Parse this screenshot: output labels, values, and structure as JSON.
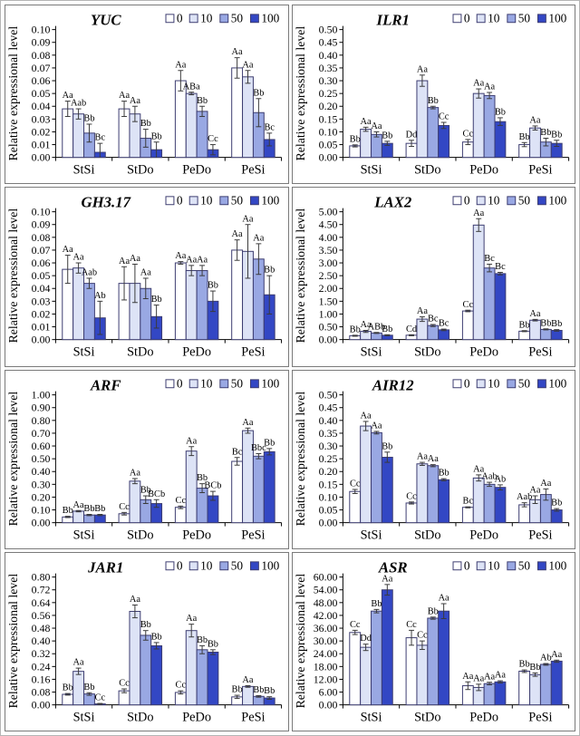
{
  "figure": {
    "ylabel": "Relative expressional level",
    "categories": [
      "StSi",
      "StDo",
      "PeDo",
      "PeSi"
    ],
    "legend": [
      "0",
      "10",
      "50",
      "100"
    ],
    "series_colors": [
      "#FFFFFF",
      "#DDE3F6",
      "#99A8E3",
      "#3347C4"
    ],
    "bar_border_color": "#3C3C70",
    "error_bar_color": "#3A3A3A",
    "axis_color": "#000000",
    "panel_border_color": "#7A7A7A"
  },
  "chart_data": [
    {
      "type": "bar",
      "title": "YUC",
      "ylabel": "Relative expressional level",
      "categories": [
        "StSi",
        "StDo",
        "PeDo",
        "PeSi"
      ],
      "ylim": [
        0,
        0.1
      ],
      "ystep": 0.01,
      "decimals": 2,
      "legend_position": "top-right",
      "grid": false,
      "series": [
        {
          "name": "0",
          "values": [
            0.038,
            0.038,
            0.06,
            0.07
          ],
          "errors": [
            0.006,
            0.006,
            0.008,
            0.008
          ],
          "labels": [
            "Aa",
            "Aa",
            "Aa",
            "Aa"
          ]
        },
        {
          "name": "10",
          "values": [
            0.034,
            0.034,
            0.05,
            0.063
          ],
          "errors": [
            0.004,
            0.006,
            0.001,
            0.005
          ],
          "labels": [
            "Aab",
            "Aa",
            "ABa",
            "Aa"
          ]
        },
        {
          "name": "50",
          "values": [
            0.019,
            0.015,
            0.036,
            0.035
          ],
          "errors": [
            0.007,
            0.007,
            0.004,
            0.011
          ],
          "labels": [
            "Bb",
            "Bb",
            "Bb",
            "Bb"
          ]
        },
        {
          "name": "100",
          "values": [
            0.004,
            0.006,
            0.006,
            0.014
          ],
          "errors": [
            0.007,
            0.006,
            0.004,
            0.005
          ],
          "labels": [
            "Bc",
            "Bb",
            "Cc",
            "Bc"
          ]
        }
      ]
    },
    {
      "type": "bar",
      "title": "ILR1",
      "ylabel": "Relative expressional level",
      "categories": [
        "StSi",
        "StDo",
        "PeDo",
        "PeSi"
      ],
      "ylim": [
        0,
        0.5
      ],
      "ystep": 0.05,
      "decimals": 2,
      "legend_position": "top-right",
      "grid": false,
      "series": [
        {
          "name": "0",
          "values": [
            0.045,
            0.055,
            0.06,
            0.05
          ],
          "errors": [
            0.004,
            0.012,
            0.01,
            0.008
          ],
          "labels": [
            "Bb",
            "Dd",
            "Cc",
            "Bb"
          ]
        },
        {
          "name": "10",
          "values": [
            0.11,
            0.3,
            0.25,
            0.115
          ],
          "errors": [
            0.008,
            0.022,
            0.018,
            0.008
          ],
          "labels": [
            "Aa",
            "Aa",
            "Aa",
            "Aa"
          ]
        },
        {
          "name": "50",
          "values": [
            0.09,
            0.195,
            0.242,
            0.06
          ],
          "errors": [
            0.01,
            0.005,
            0.012,
            0.015
          ],
          "labels": [
            "Aa",
            "Bb",
            "Aa",
            "Bb"
          ]
        },
        {
          "name": "100",
          "values": [
            0.055,
            0.125,
            0.14,
            0.055
          ],
          "errors": [
            0.008,
            0.012,
            0.015,
            0.012
          ],
          "labels": [
            "Bb",
            "Cc",
            "Bb",
            "Bb"
          ]
        }
      ]
    },
    {
      "type": "bar",
      "title": "GH3.17",
      "ylabel": "Relative expressional level",
      "categories": [
        "StSi",
        "StDo",
        "PeDo",
        "PeSi"
      ],
      "ylim": [
        0,
        0.1
      ],
      "ystep": 0.01,
      "decimals": 2,
      "legend_position": "top-right",
      "grid": false,
      "series": [
        {
          "name": "0",
          "values": [
            0.055,
            0.044,
            0.06,
            0.07
          ],
          "errors": [
            0.011,
            0.013,
            0.001,
            0.008
          ],
          "labels": [
            "Aa",
            "Aa",
            "Aa",
            "Aa"
          ]
        },
        {
          "name": "10",
          "values": [
            0.056,
            0.044,
            0.054,
            0.069
          ],
          "errors": [
            0.004,
            0.015,
            0.004,
            0.021
          ],
          "labels": [
            "Aa",
            "Aa",
            "Aa",
            "Aa"
          ]
        },
        {
          "name": "50",
          "values": [
            0.044,
            0.04,
            0.054,
            0.063
          ],
          "errors": [
            0.004,
            0.008,
            0.004,
            0.012
          ],
          "labels": [
            "Aab",
            "Aa",
            "Aa",
            "Aa"
          ]
        },
        {
          "name": "100",
          "values": [
            0.017,
            0.018,
            0.03,
            0.035
          ],
          "errors": [
            0.013,
            0.009,
            0.008,
            0.015
          ],
          "labels": [
            "Ab",
            "Bb",
            "Bb",
            "Bb"
          ]
        }
      ]
    },
    {
      "type": "bar",
      "title": "LAX2",
      "ylabel": "Relative expressional level",
      "categories": [
        "StSi",
        "StDo",
        "PeDo",
        "PeSi"
      ],
      "ylim": [
        0,
        5.0
      ],
      "ystep": 0.5,
      "decimals": 2,
      "legend_position": "top-right",
      "grid": false,
      "series": [
        {
          "name": "0",
          "values": [
            0.15,
            0.17,
            1.12,
            0.33
          ],
          "errors": [
            0.02,
            0.02,
            0.03,
            0.02
          ],
          "labels": [
            "Bb",
            "Cd",
            "Cc",
            "Bb"
          ]
        },
        {
          "name": "10",
          "values": [
            0.32,
            0.8,
            4.48,
            0.76
          ],
          "errors": [
            0.04,
            0.09,
            0.25,
            0.03
          ],
          "labels": [
            "Aa",
            "Aa",
            "Aa",
            "Aa"
          ]
        },
        {
          "name": "50",
          "values": [
            0.26,
            0.55,
            2.8,
            0.4
          ],
          "errors": [
            0.02,
            0.04,
            0.15,
            0.02
          ],
          "labels": [
            "ABb",
            "Bc",
            "Bc",
            "Bb"
          ]
        },
        {
          "name": "100",
          "values": [
            0.17,
            0.38,
            2.58,
            0.36
          ],
          "errors": [
            0.02,
            0.03,
            0.05,
            0.03
          ],
          "labels": [
            "Bb",
            "Bc",
            "Bc",
            "Bb"
          ]
        }
      ]
    },
    {
      "type": "bar",
      "title": "ARF",
      "ylabel": "Relative expressional level",
      "categories": [
        "StSi",
        "StDo",
        "PeDo",
        "PeSi"
      ],
      "ylim": [
        0,
        1.0
      ],
      "ystep": 0.1,
      "decimals": 2,
      "legend_position": "top-right",
      "grid": false,
      "series": [
        {
          "name": "0",
          "values": [
            0.045,
            0.07,
            0.12,
            0.48
          ],
          "errors": [
            0.005,
            0.01,
            0.01,
            0.03
          ],
          "labels": [
            "Bb",
            "Cc",
            "Cc",
            "Bc"
          ]
        },
        {
          "name": "10",
          "values": [
            0.09,
            0.325,
            0.56,
            0.72
          ],
          "errors": [
            0.005,
            0.02,
            0.035,
            0.02
          ],
          "labels": [
            "Aa",
            "Aa",
            "Aa",
            "Aa"
          ]
        },
        {
          "name": "50",
          "values": [
            0.06,
            0.18,
            0.27,
            0.52
          ],
          "errors": [
            0.005,
            0.03,
            0.035,
            0.02
          ],
          "labels": [
            "Bb",
            "Bb",
            "Bb",
            "Bbc"
          ]
        },
        {
          "name": "100",
          "values": [
            0.06,
            0.15,
            0.21,
            0.555
          ],
          "errors": [
            0.005,
            0.03,
            0.035,
            0.025
          ],
          "labels": [
            "Bb",
            "BCb",
            "BCb",
            "Bb"
          ]
        }
      ]
    },
    {
      "type": "bar",
      "title": "AIR12",
      "ylabel": "Relative expressional level",
      "categories": [
        "StSi",
        "StDo",
        "PeDo",
        "PeSi"
      ],
      "ylim": [
        0,
        0.5
      ],
      "ystep": 0.05,
      "decimals": 2,
      "legend_position": "top-right",
      "grid": false,
      "series": [
        {
          "name": "0",
          "values": [
            0.122,
            0.077,
            0.06,
            0.07
          ],
          "errors": [
            0.008,
            0.004,
            0.002,
            0.008
          ],
          "labels": [
            "Cc",
            "Cc",
            "Bc",
            "Aab"
          ]
        },
        {
          "name": "10",
          "values": [
            0.378,
            0.23,
            0.175,
            0.09
          ],
          "errors": [
            0.018,
            0.006,
            0.012,
            0.015
          ],
          "labels": [
            "Aa",
            "Aa",
            "Aa",
            "Aa"
          ]
        },
        {
          "name": "50",
          "values": [
            0.352,
            0.223,
            0.15,
            0.11
          ],
          "errors": [
            0.005,
            0.004,
            0.008,
            0.022
          ],
          "labels": [
            "Aa",
            "Aa",
            "Aab",
            "Aa"
          ]
        },
        {
          "name": "100",
          "values": [
            0.256,
            0.168,
            0.138,
            0.05
          ],
          "errors": [
            0.02,
            0.004,
            0.01,
            0.005
          ],
          "labels": [
            "Bb",
            "Bb",
            "Ab",
            "Bb"
          ]
        }
      ]
    },
    {
      "type": "bar",
      "title": "JAR1",
      "ylabel": "Relative expressional level",
      "categories": [
        "StSi",
        "StDo",
        "PeDo",
        "PeSi"
      ],
      "ylim": [
        0,
        0.8
      ],
      "ystep": 0.08,
      "decimals": 2,
      "legend_position": "top-right",
      "grid": false,
      "series": [
        {
          "name": "0",
          "values": [
            0.066,
            0.088,
            0.078,
            0.05
          ],
          "errors": [
            0.005,
            0.012,
            0.01,
            0.01
          ],
          "labels": [
            "Bb",
            "Cc",
            "Cc",
            "Bb"
          ]
        },
        {
          "name": "10",
          "values": [
            0.21,
            0.585,
            0.465,
            0.115
          ],
          "errors": [
            0.02,
            0.04,
            0.04,
            0.005
          ],
          "labels": [
            "Aa",
            "Aa",
            "Aa",
            "Aa"
          ]
        },
        {
          "name": "50",
          "values": [
            0.068,
            0.435,
            0.345,
            0.053
          ],
          "errors": [
            0.008,
            0.03,
            0.025,
            0.005
          ],
          "labels": [
            "Bb",
            "Bb",
            "Bb",
            "Bb"
          ]
        },
        {
          "name": "100",
          "values": [
            0.006,
            0.37,
            0.33,
            0.043
          ],
          "errors": [
            0.003,
            0.02,
            0.015,
            0.008
          ],
          "labels": [
            "Cc",
            "Bb",
            "Bb",
            "Bb"
          ]
        }
      ]
    },
    {
      "type": "bar",
      "title": "ASR",
      "ylabel": "Relative expressional level",
      "categories": [
        "StSi",
        "StDo",
        "PeDo",
        "PeSi"
      ],
      "ylim": [
        0,
        60.0
      ],
      "ystep": 6.0,
      "decimals": 2,
      "legend_position": "top-right",
      "grid": false,
      "series": [
        {
          "name": "0",
          "values": [
            34.0,
            31.5,
            9.0,
            15.8
          ],
          "errors": [
            1.0,
            3.5,
            1.8,
            0.6
          ],
          "labels": [
            "Cc",
            "Cc",
            "Aa",
            "Bb"
          ]
        },
        {
          "name": "10",
          "values": [
            27.0,
            28.0,
            8.2,
            14.2
          ],
          "errors": [
            1.5,
            2.0,
            1.5,
            0.8
          ],
          "labels": [
            "Dd",
            "Cc",
            "Aa",
            "Bb"
          ]
        },
        {
          "name": "50",
          "values": [
            44.0,
            40.7,
            10.0,
            19.0
          ],
          "errors": [
            0.8,
            0.5,
            0.6,
            0.4
          ],
          "labels": [
            "Bb",
            "Bb",
            "Aa",
            "Ab"
          ]
        },
        {
          "name": "100",
          "values": [
            54.0,
            44.0,
            10.8,
            20.5
          ],
          "errors": [
            2.5,
            3.5,
            0.5,
            0.5
          ],
          "labels": [
            "Aa",
            "Aa",
            "Aa",
            "Aa"
          ]
        }
      ]
    }
  ]
}
